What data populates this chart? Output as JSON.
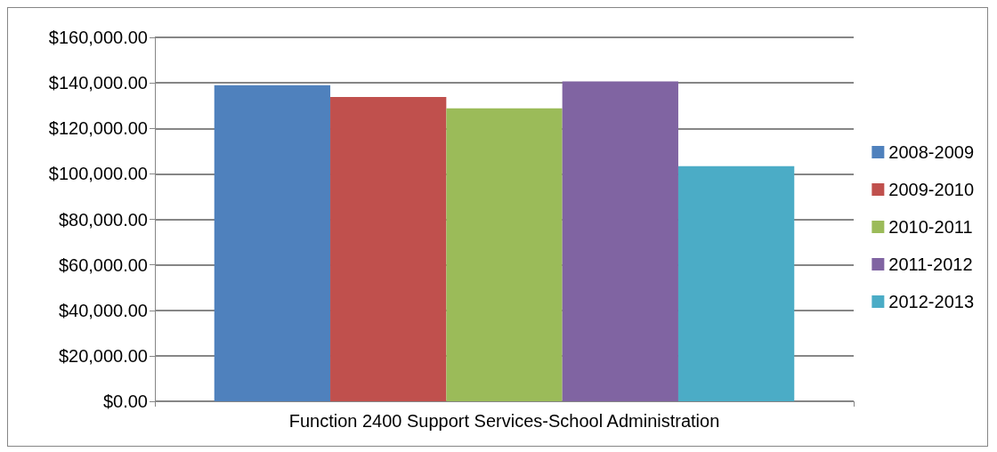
{
  "chart_data": {
    "type": "bar",
    "categories": [
      "Function 2400 Support Services-School Administration"
    ],
    "series": [
      {
        "name": "2008-2009",
        "color": "#4f81bd",
        "values": [
          139000
        ]
      },
      {
        "name": "2009-2010",
        "color": "#c0504d",
        "values": [
          133800
        ]
      },
      {
        "name": "2010-2011",
        "color": "#9bbb59",
        "values": [
          128800
        ]
      },
      {
        "name": "2011-2012",
        "color": "#8064a2",
        "values": [
          140600
        ]
      },
      {
        "name": "2012-2013",
        "color": "#4bacc6",
        "values": [
          103400
        ]
      }
    ],
    "ylim": [
      0,
      160000
    ],
    "yticks": [
      {
        "value": 0,
        "label": "$0.00"
      },
      {
        "value": 20000,
        "label": "$20,000.00"
      },
      {
        "value": 40000,
        "label": "$40,000.00"
      },
      {
        "value": 60000,
        "label": "$60,000.00"
      },
      {
        "value": 80000,
        "label": "$80,000.00"
      },
      {
        "value": 100000,
        "label": "$100,000.00"
      },
      {
        "value": 120000,
        "label": "$120,000.00"
      },
      {
        "value": 140000,
        "label": "$140,000.00"
      },
      {
        "value": 160000,
        "label": "$160,000.00"
      }
    ],
    "grid": "y",
    "legend": "right"
  }
}
